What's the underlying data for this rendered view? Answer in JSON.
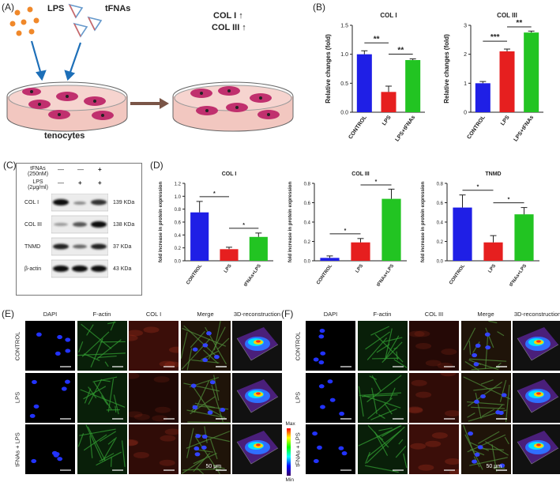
{
  "panelA": {
    "label": "(A)",
    "lps": "LPS",
    "tfnas": "tFNAs",
    "col1": "COL  I  ↑",
    "col3": "COL III ↑",
    "cells": "tenocytes"
  },
  "panelB": {
    "label": "(B)"
  },
  "panelC": {
    "label": "(C)",
    "row1": "tFNAs",
    "row1b": "(250nM)",
    "row2": "LPS",
    "row2b": "(2μg/ml)",
    "signs1": [
      "—",
      "—",
      "+"
    ],
    "signs2": [
      "—",
      "+",
      "+"
    ],
    "bands": [
      "COL I",
      "COL III",
      "TNMD",
      "β-actin"
    ],
    "sizes": [
      "139 KDa",
      "138 KDa",
      "37 KDa",
      "43 KDa"
    ]
  },
  "panelD": {
    "label": "(D)"
  },
  "panelE": {
    "label": "(E)",
    "cols": [
      "DAPI",
      "F-actin",
      "COL I",
      "Merge",
      "3D-reconstruction"
    ],
    "rows": [
      "CONTROL",
      "LPS",
      "tFNAs + LPS"
    ],
    "scale": "50 μm",
    "max": "Max",
    "min": "Min"
  },
  "panelF": {
    "label": "(F)",
    "cols": [
      "DAPI",
      "F-actin",
      "COL III",
      "Merge",
      "3D-reconstruction"
    ],
    "rows": [
      "CONTROL",
      "LPS",
      "tFNAs + LPS"
    ],
    "scale": "50 μm",
    "max": "Max",
    "min": "Min"
  },
  "chart_data": [
    {
      "type": "bar",
      "title": "COL I",
      "ylabel": "Relative changes (fold)",
      "categories": [
        "CONTROL",
        "LPS",
        "LPS+tFNAs"
      ],
      "values": [
        1.0,
        0.35,
        0.9
      ],
      "errors": [
        0.06,
        0.1,
        0.02
      ],
      "ylim": [
        0,
        1.5
      ],
      "yticks": [
        "0.0",
        "0.5",
        "1.0",
        "1.5"
      ],
      "colors": [
        "#1f1fe6",
        "#e61f1f",
        "#22c422"
      ],
      "sig": [
        "**",
        "**"
      ]
    },
    {
      "type": "bar",
      "title": "COL III",
      "ylabel": "Relative changes (fold)",
      "categories": [
        "CONTROL",
        "LPS",
        "LPS+tFNAs"
      ],
      "values": [
        1.0,
        2.1,
        2.75
      ],
      "errors": [
        0.06,
        0.08,
        0.05
      ],
      "ylim": [
        0,
        3
      ],
      "yticks": [
        "0",
        "1",
        "2",
        "3"
      ],
      "colors": [
        "#1f1fe6",
        "#e61f1f",
        "#22c422"
      ],
      "sig": [
        "***",
        "**"
      ]
    },
    {
      "type": "bar",
      "title": "COL I",
      "ylabel": "fold increase in protein expression",
      "categories": [
        "CONTROL",
        "LPS",
        "tFNAs+LPS"
      ],
      "values": [
        0.75,
        0.18,
        0.37
      ],
      "errors": [
        0.17,
        0.03,
        0.06
      ],
      "ylim": [
        0,
        1.2
      ],
      "yticks": [
        "0.0",
        "0.2",
        "0.4",
        "0.6",
        "0.8",
        "1.0",
        "1.2"
      ],
      "colors": [
        "#1f1fe6",
        "#e61f1f",
        "#22c422"
      ],
      "sig": [
        "*",
        "*"
      ]
    },
    {
      "type": "bar",
      "title": "COL III",
      "ylabel": "fold increase in protein expression",
      "categories": [
        "CONTROL",
        "LPS",
        "tFNAs+LPS"
      ],
      "values": [
        0.03,
        0.19,
        0.64
      ],
      "errors": [
        0.02,
        0.04,
        0.1
      ],
      "ylim": [
        0,
        0.8
      ],
      "yticks": [
        "0.0",
        "0.2",
        "0.4",
        "0.6",
        "0.8"
      ],
      "colors": [
        "#1f1fe6",
        "#e61f1f",
        "#22c422"
      ],
      "sig": [
        "*",
        "*"
      ]
    },
    {
      "type": "bar",
      "title": "TNMD",
      "ylabel": "fold increase in protein expression",
      "categories": [
        "CONTROL",
        "LPS",
        "tFNAs+LPS"
      ],
      "values": [
        0.55,
        0.19,
        0.48
      ],
      "errors": [
        0.13,
        0.07,
        0.07
      ],
      "ylim": [
        0,
        0.8
      ],
      "yticks": [
        "0.0",
        "0.2",
        "0.4",
        "0.6",
        "0.8"
      ],
      "colors": [
        "#1f1fe6",
        "#e61f1f",
        "#22c422"
      ],
      "sig": [
        "*",
        "*"
      ]
    }
  ]
}
